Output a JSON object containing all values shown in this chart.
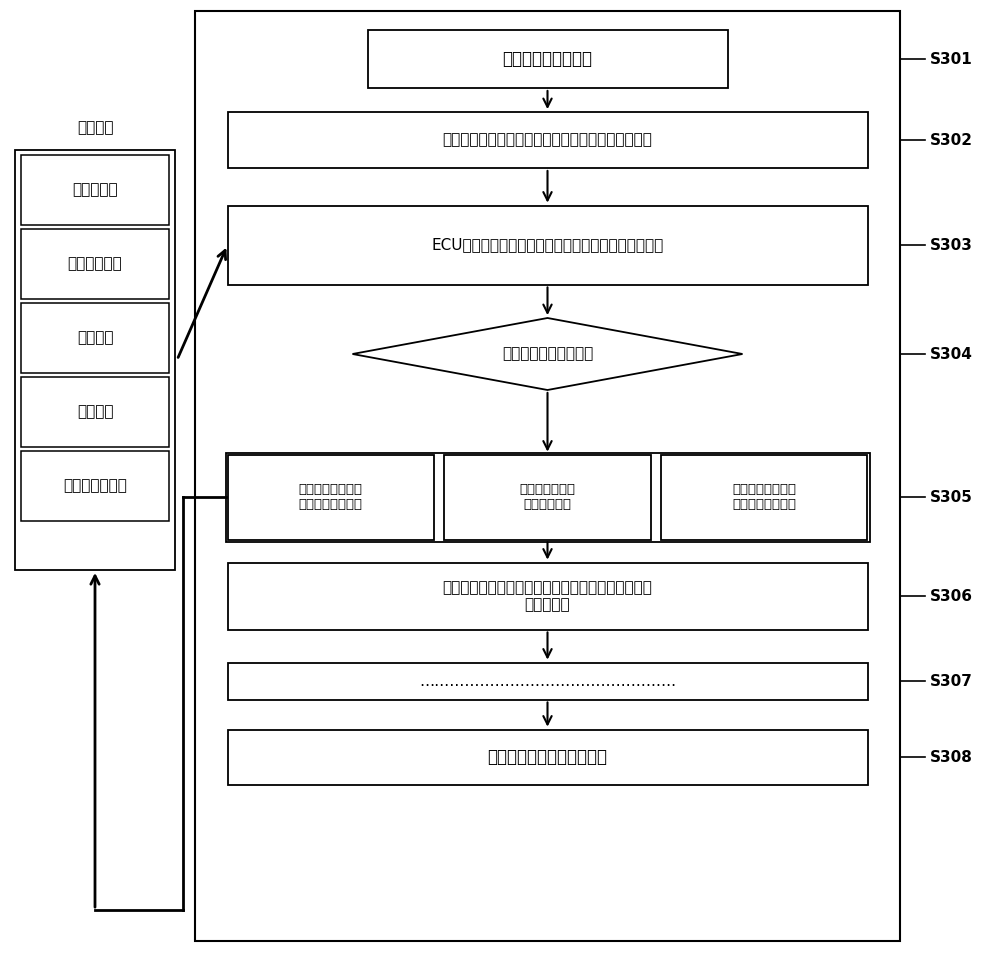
{
  "bg_color": "#ffffff",
  "feedback_label": "反馈参数",
  "feedback_items": [
    "发动机温度",
    "缸内燃气温度",
    "排气温度",
    "进气流量",
    "冷却柴油回油量"
  ],
  "s301_text": "发动机起动怎速运行",
  "s302_text": "冷却柴油油量控制阀初始开度，针阀泄漏的正常回油",
  "s303_text": "ECU计算热负荷及冷却柴油对嚙射器针阀体的冷却强度",
  "s304_text": "判断是否满足冷却要求",
  "s305_texts": [
    "冷却柴油控制阀开\n度减小回油量减少",
    "冷却柴油控制阀\n开度保持不变",
    "冷却柴油控制阀开\n度增大回油量增加"
  ],
  "s306_text": "确定发动机工况及冷却柴油控制阀开度的对应关系，\n标定下一点",
  "s307_text": "……………………………………………",
  "s308_text": "标定完成，发动机正常运转",
  "labels": [
    "S301",
    "S302",
    "S303",
    "S304",
    "S305",
    "S306",
    "S307",
    "S308"
  ]
}
